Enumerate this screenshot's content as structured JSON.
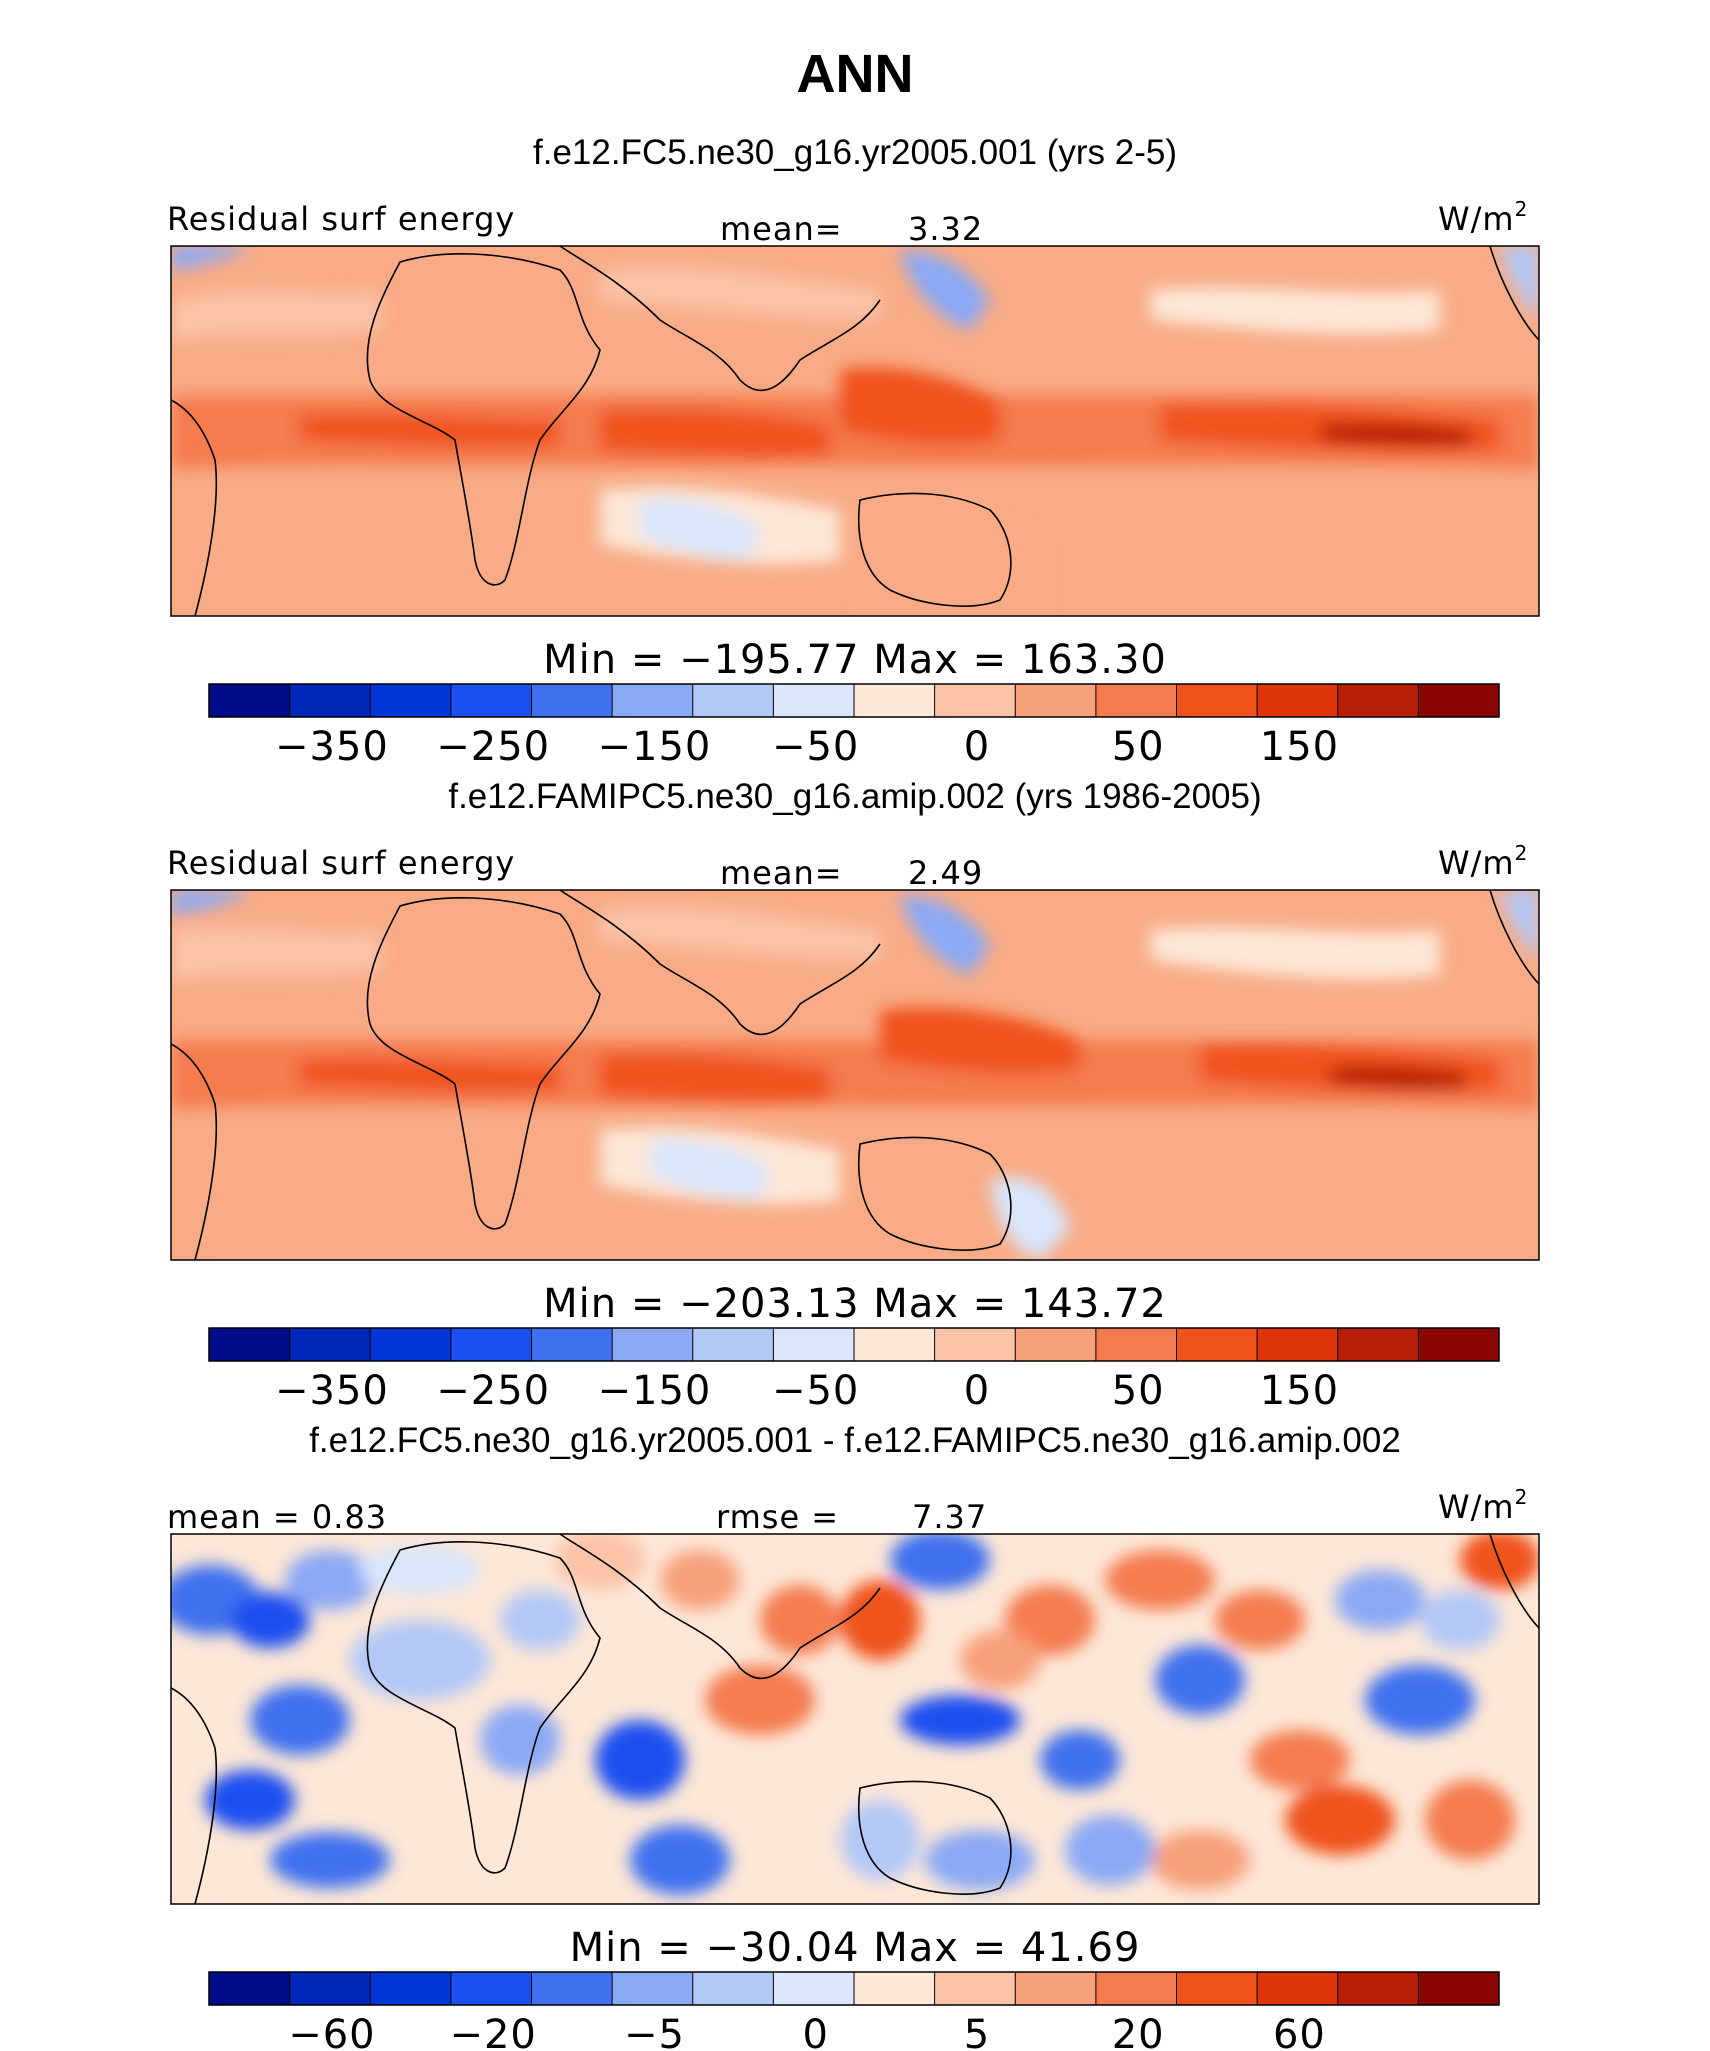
{
  "figure": {
    "title": "ANN",
    "units": "W/m",
    "units_superscript": "2"
  },
  "colors": {
    "palette": [
      "#000c8a",
      "#0027b8",
      "#0037d8",
      "#1a4ff0",
      "#3f71ef",
      "#8aa9f5",
      "#b2c8f7",
      "#d9e6fb",
      "#fde7d7",
      "#fbc3a8",
      "#f7a07c",
      "#f47b4f",
      "#f0521c",
      "#dd3409",
      "#b81e06",
      "#8a0503"
    ],
    "land_tint": "#f5a07c",
    "coast": "#000000"
  },
  "chart_data": [
    {
      "type": "heatmap",
      "panel_title": "f.e12.FC5.ne30_g16.yr2005.001 (yrs 2-5)",
      "left_label": "Residual surf energy",
      "stat_label": "mean=",
      "stat_value": "3.32",
      "right_label": "W/m",
      "right_label_sup": "2",
      "min_max_text": "Min  =  −195.77  Max  =  163.30",
      "min": -195.77,
      "max": 163.3,
      "mean": 3.32,
      "colorbar_ticks": [
        "−350",
        "−250",
        "−150",
        "−50",
        "0",
        "50",
        "150"
      ],
      "colorbar_levels": [
        -350,
        -300,
        -250,
        -200,
        -150,
        -100,
        -50,
        -25,
        0,
        25,
        50,
        100,
        150,
        200,
        250
      ],
      "lon_range": [
        -30,
        300
      ],
      "lat_range": [
        -40,
        50
      ]
    },
    {
      "type": "heatmap",
      "panel_title": "f.e12.FAMIPC5.ne30_g16.amip.002 (yrs 1986-2005)",
      "left_label": "Residual surf energy",
      "stat_label": "mean=",
      "stat_value": "2.49",
      "right_label": "W/m",
      "right_label_sup": "2",
      "min_max_text": "Min  =  −203.13  Max  =  143.72",
      "min": -203.13,
      "max": 143.72,
      "mean": 2.49,
      "colorbar_ticks": [
        "−350",
        "−250",
        "−150",
        "−50",
        "0",
        "50",
        "150"
      ],
      "colorbar_levels": [
        -350,
        -300,
        -250,
        -200,
        -150,
        -100,
        -50,
        -25,
        0,
        25,
        50,
        100,
        150,
        200,
        250
      ],
      "lon_range": [
        -30,
        300
      ],
      "lat_range": [
        -40,
        50
      ]
    },
    {
      "type": "heatmap",
      "panel_title": "f.e12.FC5.ne30_g16.yr2005.001 - f.e12.FAMIPC5.ne30_g16.amip.002",
      "left_label": "mean  =    0.83",
      "stat_label": "rmse  =",
      "stat_value": "7.37",
      "right_label": "W/m",
      "right_label_sup": "2",
      "min_max_text": "Min  =  −30.04  Max  =   41.69",
      "min": -30.04,
      "max": 41.69,
      "mean": 0.83,
      "rmse": 7.37,
      "colorbar_ticks": [
        "−60",
        "−20",
        "−5",
        "0",
        "5",
        "20",
        "60"
      ],
      "colorbar_levels": [
        -80,
        -60,
        -40,
        -20,
        -10,
        -5,
        -2,
        0,
        2,
        5,
        10,
        20,
        40,
        60,
        80
      ],
      "lon_range": [
        -30,
        300
      ],
      "lat_range": [
        -40,
        50
      ]
    }
  ]
}
